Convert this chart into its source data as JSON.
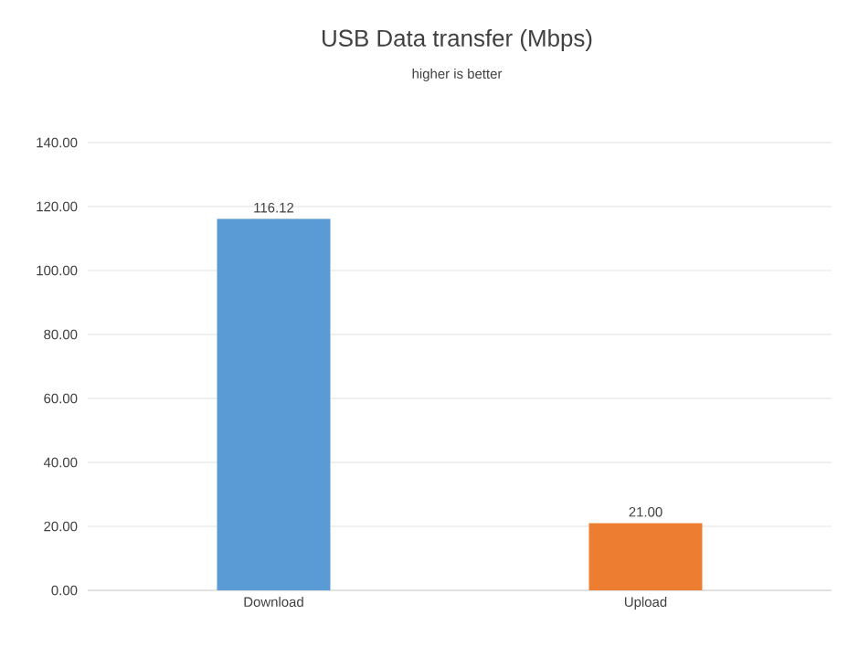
{
  "chart_data": {
    "type": "bar",
    "title": "USB Data transfer (Mbps)",
    "subtitle": "higher is better",
    "categories": [
      "Download",
      "Upload"
    ],
    "values": [
      116.12,
      21.0
    ],
    "colors": [
      "#5b9bd5",
      "#ed7d31"
    ],
    "value_labels": [
      "116.12",
      "21.00"
    ],
    "ylim": [
      0,
      140
    ],
    "yticks": [
      {
        "value": 0,
        "label": "0.00"
      },
      {
        "value": 20,
        "label": "20.00"
      },
      {
        "value": 40,
        "label": "40.00"
      },
      {
        "value": 60,
        "label": "60.00"
      },
      {
        "value": 80,
        "label": "80.00"
      },
      {
        "value": 100,
        "label": "100.00"
      },
      {
        "value": 120,
        "label": "120.00"
      },
      {
        "value": 140,
        "label": "140.00"
      }
    ],
    "grid": "y"
  }
}
